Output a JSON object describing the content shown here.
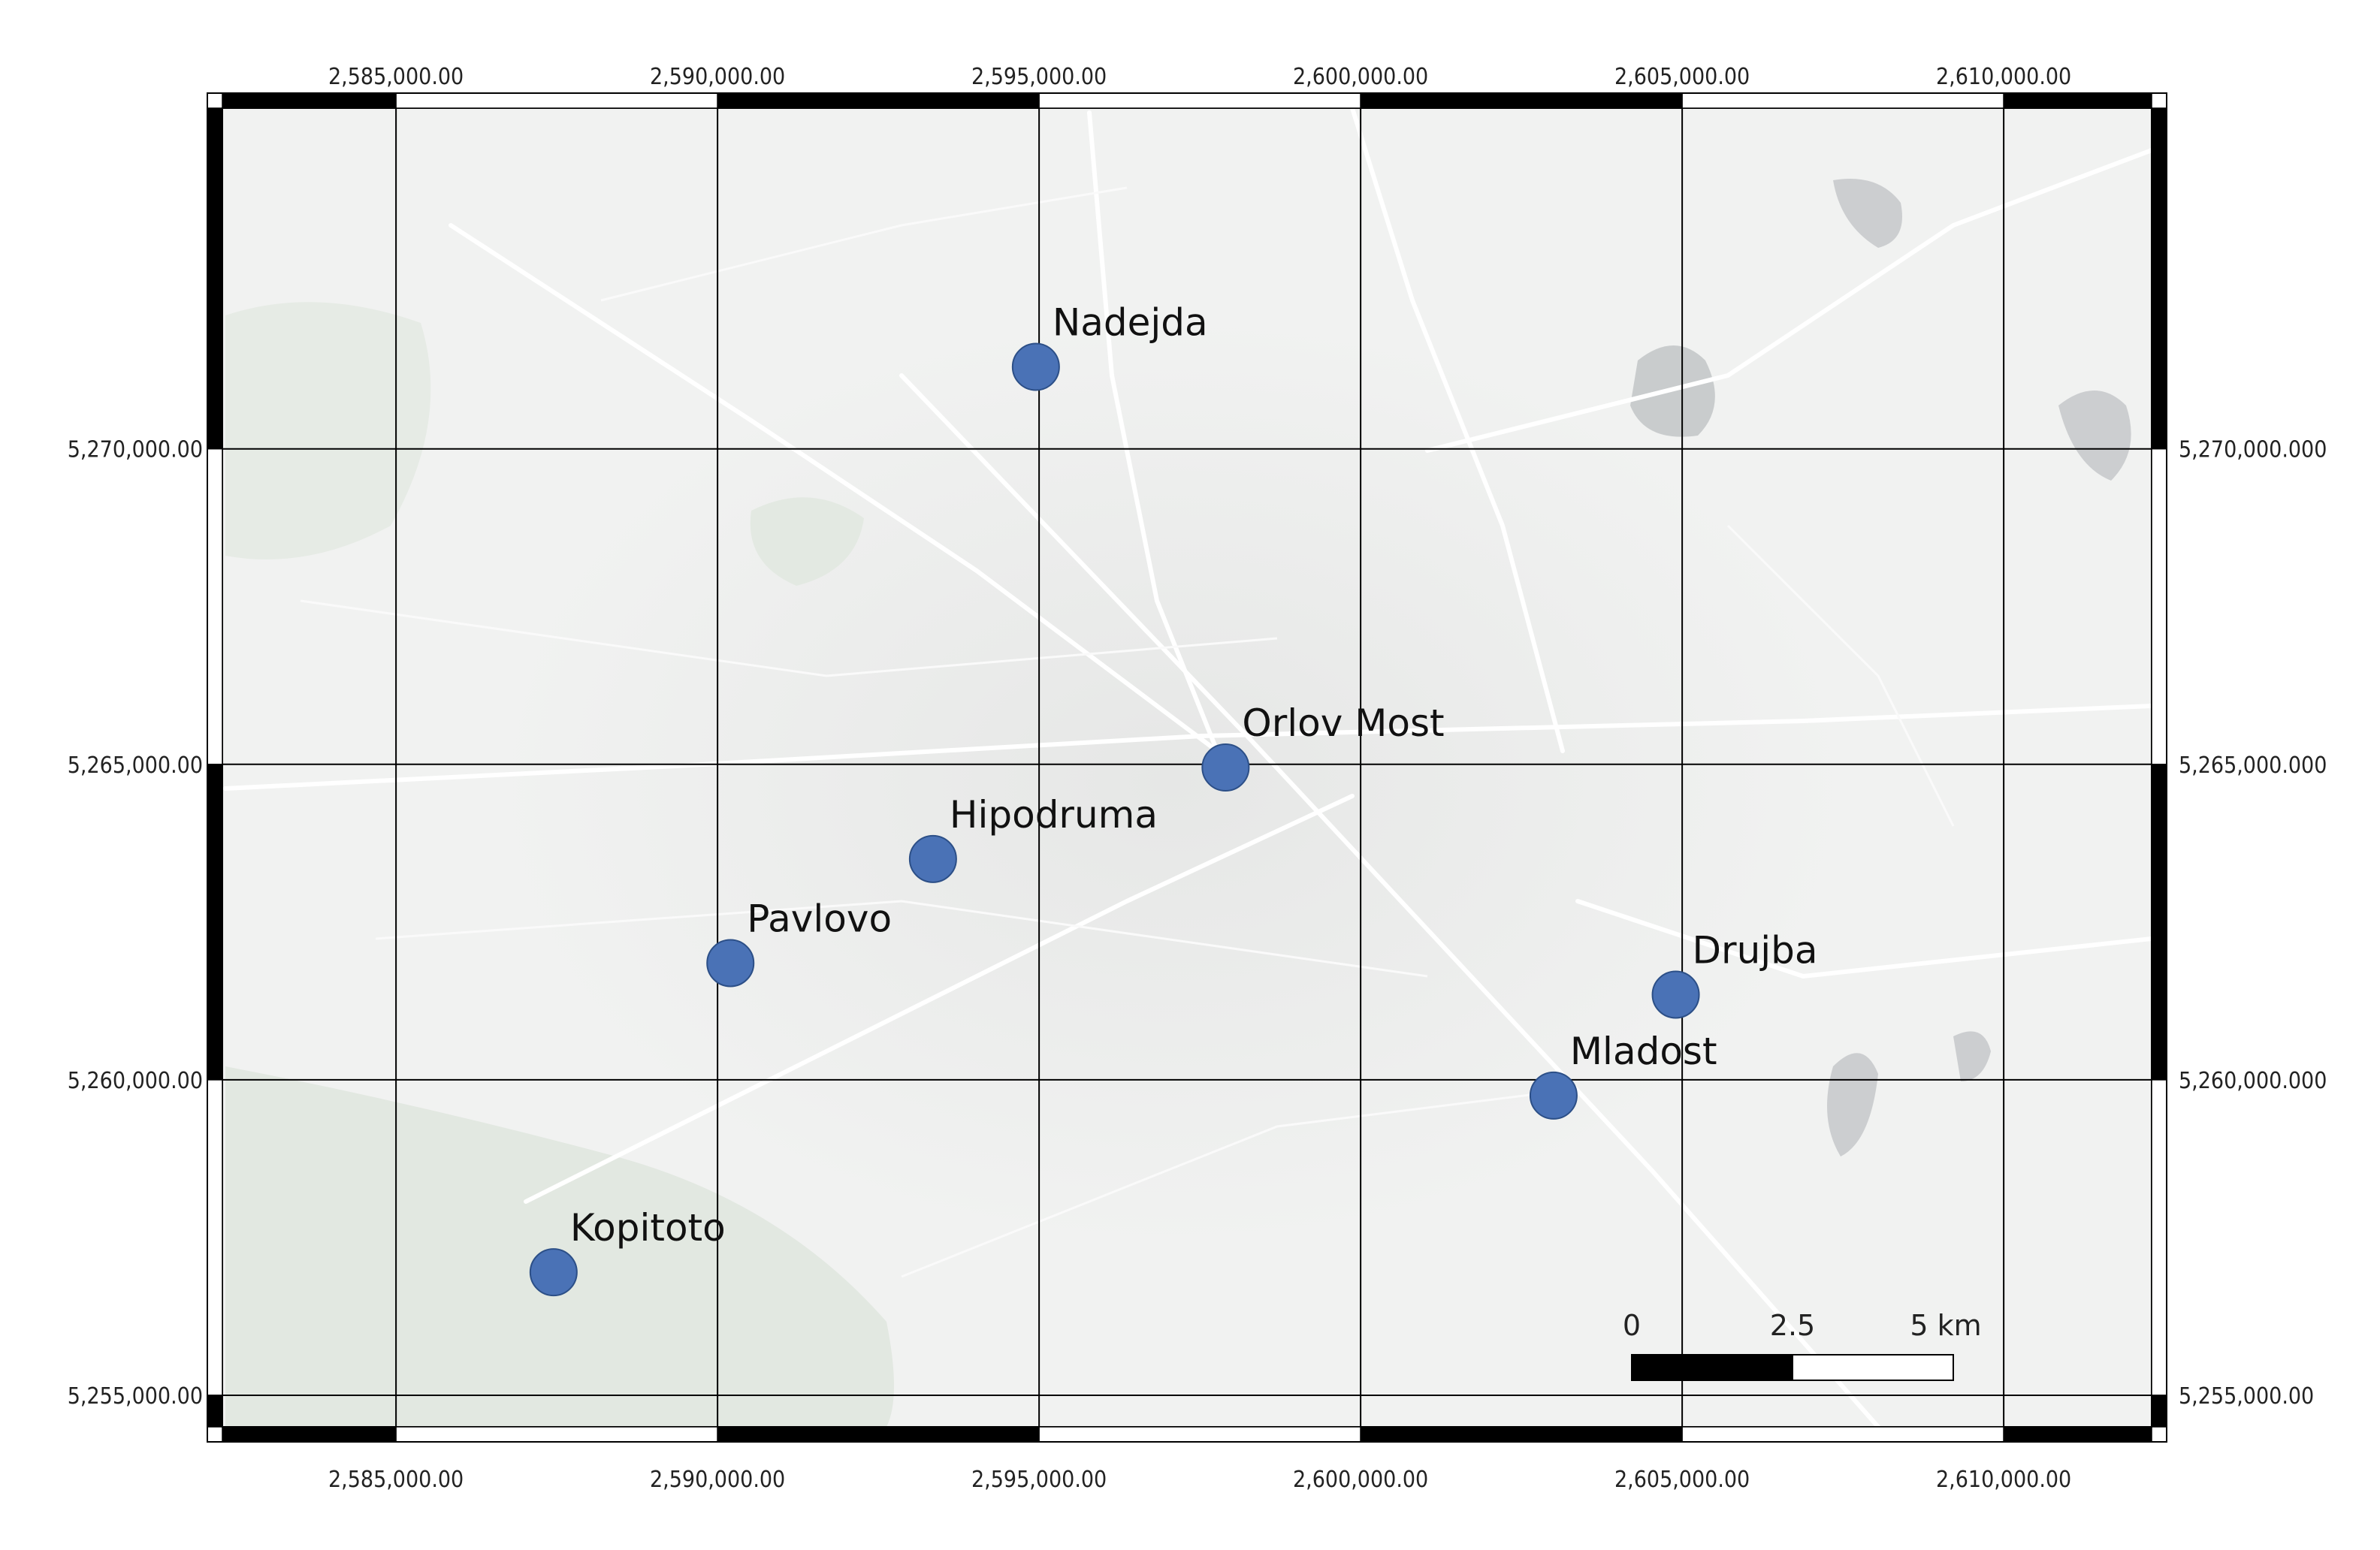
{
  "map": {
    "crs_units": "m",
    "extent": {
      "xmin": 2582300,
      "xmax": 2612300,
      "ymin": 5254500,
      "ymax": 5275400
    },
    "x_ticks": [
      {
        "value": 2585000,
        "label": "2,585,000.00"
      },
      {
        "value": 2590000,
        "label": "2,590,000.00"
      },
      {
        "value": 2595000,
        "label": "2,595,000.00"
      },
      {
        "value": 2600000,
        "label": "2,600,000.00"
      },
      {
        "value": 2605000,
        "label": "2,605,000.00"
      },
      {
        "value": 2610000,
        "label": "2,610,000.00"
      }
    ],
    "y_ticks": [
      {
        "value": 5270000,
        "label_left": "5,270,000.00",
        "label_right": "5,270,000.000"
      },
      {
        "value": 5265000,
        "label_left": "5,265,000.00",
        "label_right": "5,265,000.000"
      },
      {
        "value": 5260000,
        "label_left": "5,260,000.00",
        "label_right": "5,260,000.000"
      },
      {
        "value": 5255000,
        "label_left": "5,255,000.00",
        "label_right": "5,255,000.00"
      }
    ],
    "stations": [
      {
        "name": "Nadejda",
        "x": 2594950,
        "y": 5271300
      },
      {
        "name": "Orlov Most",
        "x": 2597900,
        "y": 5264950
      },
      {
        "name": "Hipodruma",
        "x": 2593350,
        "y": 5263500
      },
      {
        "name": "Pavlovo",
        "x": 2590200,
        "y": 5261850
      },
      {
        "name": "Drujba",
        "x": 2604900,
        "y": 5261350
      },
      {
        "name": "Mladost",
        "x": 2603000,
        "y": 5259750
      },
      {
        "name": "Kopitoto",
        "x": 2587450,
        "y": 5256950
      }
    ],
    "scale_bar": {
      "labels": [
        "0",
        "2.5",
        "5 km"
      ],
      "km_values": [
        0,
        2.5,
        5
      ]
    },
    "colors": {
      "marker_fill": "#4a72b6",
      "marker_stroke": "#2c4f87",
      "basemap": "#f1f2f1",
      "park": "#e2e8e1",
      "water": "#c9cccd",
      "road": "#ffffff",
      "grid": "#000000"
    }
  }
}
